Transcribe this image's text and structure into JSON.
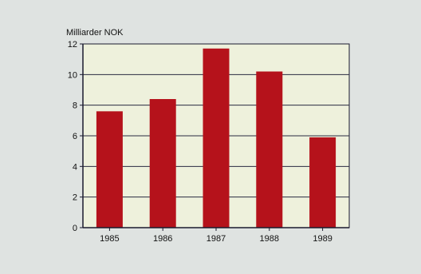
{
  "chart_data": {
    "type": "bar",
    "title": "",
    "ylabel": "Milliarder NOK",
    "xlabel": "",
    "categories": [
      "1985",
      "1986",
      "1987",
      "1988",
      "1989"
    ],
    "values": [
      7.6,
      8.4,
      11.7,
      10.2,
      5.9
    ],
    "ylim": [
      0,
      12
    ],
    "yticks": [
      "0",
      "2",
      "4",
      "6",
      "8",
      "10",
      "12"
    ],
    "grid": true,
    "legend": "none",
    "colors": {
      "bar": "#b5121b",
      "plot_background": "#eef1dc",
      "page_background": "#dfe3e1",
      "grid": "#2a2a40",
      "axis": "#1a1a2e",
      "text": "#111111"
    }
  }
}
